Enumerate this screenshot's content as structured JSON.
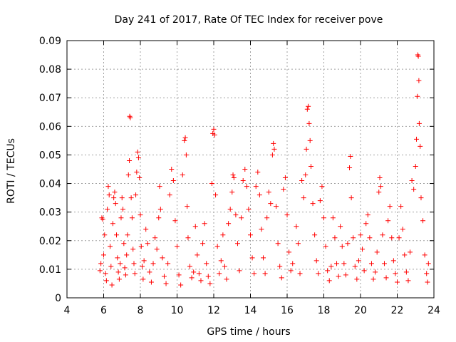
{
  "chart_data": {
    "type": "scatter",
    "title": "Day 241 of 2017, Rate Of TEC Index for receiver pove",
    "xlabel": "GPS time / hours",
    "ylabel": "ROTI / TECUs",
    "xlim": [
      4,
      24
    ],
    "ylim": [
      0,
      0.09
    ],
    "xticks": [
      "4",
      "6",
      "8",
      "10",
      "12",
      "14",
      "16",
      "18",
      "20",
      "22",
      "24"
    ],
    "yticks": [
      "0",
      "0.01",
      "0.02",
      "0.03",
      "0.04",
      "0.05",
      "0.06",
      "0.07",
      "0.08",
      "0.09"
    ],
    "grid": true,
    "marker": "+",
    "color": "#ff0000",
    "series": [
      {
        "points": [
          [
            5.8,
            0.0095
          ],
          [
            5.85,
            0.012
          ],
          [
            5.9,
            0.028
          ],
          [
            5.95,
            0.0275
          ],
          [
            6.0,
            0.015
          ],
          [
            6.05,
            0.022
          ],
          [
            6.1,
            0.0085
          ],
          [
            6.15,
            0.006
          ],
          [
            6.2,
            0.031
          ],
          [
            6.25,
            0.039
          ],
          [
            6.3,
            0.036
          ],
          [
            6.35,
            0.018
          ],
          [
            6.4,
            0.011
          ],
          [
            6.45,
            0.0045
          ],
          [
            6.5,
            0.026
          ],
          [
            6.55,
            0.035
          ],
          [
            6.6,
            0.037
          ],
          [
            6.65,
            0.033
          ],
          [
            6.7,
            0.022
          ],
          [
            6.75,
            0.014
          ],
          [
            6.8,
            0.009
          ],
          [
            6.85,
            0.0065
          ],
          [
            6.9,
            0.012
          ],
          [
            6.95,
            0.028
          ],
          [
            7.0,
            0.035
          ],
          [
            7.05,
            0.031
          ],
          [
            7.1,
            0.019
          ],
          [
            7.15,
            0.0105
          ],
          [
            7.2,
            0.008
          ],
          [
            7.25,
            0.015
          ],
          [
            7.3,
            0.022
          ],
          [
            7.35,
            0.043
          ],
          [
            7.4,
            0.048
          ],
          [
            7.42,
            0.0635
          ],
          [
            7.45,
            0.063
          ],
          [
            7.5,
            0.035
          ],
          [
            7.55,
            0.028
          ],
          [
            7.6,
            0.017
          ],
          [
            7.65,
            0.012
          ],
          [
            7.7,
            0.0085
          ],
          [
            7.75,
            0.036
          ],
          [
            7.8,
            0.044
          ],
          [
            7.85,
            0.051
          ],
          [
            7.9,
            0.049
          ],
          [
            7.95,
            0.042
          ],
          [
            8.0,
            0.029
          ],
          [
            8.05,
            0.018
          ],
          [
            8.1,
            0.011
          ],
          [
            8.15,
            0.0065
          ],
          [
            8.2,
            0.013
          ],
          [
            8.3,
            0.024
          ],
          [
            8.4,
            0.019
          ],
          [
            8.5,
            0.009
          ],
          [
            8.6,
            0.0055
          ],
          [
            8.7,
            0.012
          ],
          [
            8.8,
            0.021
          ],
          [
            8.9,
            0.017
          ],
          [
            9.0,
            0.028
          ],
          [
            9.05,
            0.039
          ],
          [
            9.1,
            0.031
          ],
          [
            9.2,
            0.014
          ],
          [
            9.3,
            0.0075
          ],
          [
            9.4,
            0.005
          ],
          [
            9.5,
            0.012
          ],
          [
            9.6,
            0.036
          ],
          [
            9.7,
            0.045
          ],
          [
            9.8,
            0.041
          ],
          [
            9.9,
            0.027
          ],
          [
            10.0,
            0.018
          ],
          [
            10.1,
            0.008
          ],
          [
            10.2,
            0.0045
          ],
          [
            10.3,
            0.043
          ],
          [
            10.4,
            0.055
          ],
          [
            10.45,
            0.056
          ],
          [
            10.5,
            0.05
          ],
          [
            10.55,
            0.032
          ],
          [
            10.6,
            0.021
          ],
          [
            10.7,
            0.011
          ],
          [
            10.8,
            0.007
          ],
          [
            10.9,
            0.009
          ],
          [
            11.0,
            0.025
          ],
          [
            11.1,
            0.015
          ],
          [
            11.2,
            0.0085
          ],
          [
            11.3,
            0.006
          ],
          [
            11.4,
            0.019
          ],
          [
            11.5,
            0.026
          ],
          [
            11.6,
            0.012
          ],
          [
            11.7,
            0.0075
          ],
          [
            11.8,
            0.005
          ],
          [
            11.9,
            0.04
          ],
          [
            11.95,
            0.0575
          ],
          [
            12.0,
            0.059
          ],
          [
            12.05,
            0.057
          ],
          [
            12.1,
            0.036
          ],
          [
            12.2,
            0.018
          ],
          [
            12.3,
            0.0085
          ],
          [
            12.4,
            0.013
          ],
          [
            12.5,
            0.022
          ],
          [
            12.6,
            0.011
          ],
          [
            12.7,
            0.0065
          ],
          [
            12.8,
            0.026
          ],
          [
            12.9,
            0.031
          ],
          [
            13.0,
            0.037
          ],
          [
            13.05,
            0.043
          ],
          [
            13.1,
            0.042
          ],
          [
            13.2,
            0.029
          ],
          [
            13.3,
            0.019
          ],
          [
            13.4,
            0.0095
          ],
          [
            13.5,
            0.028
          ],
          [
            13.6,
            0.041
          ],
          [
            13.7,
            0.045
          ],
          [
            13.8,
            0.039
          ],
          [
            13.9,
            0.031
          ],
          [
            14.0,
            0.022
          ],
          [
            14.1,
            0.014
          ],
          [
            14.2,
            0.0085
          ],
          [
            14.3,
            0.039
          ],
          [
            14.4,
            0.044
          ],
          [
            14.5,
            0.036
          ],
          [
            14.6,
            0.024
          ],
          [
            14.7,
            0.014
          ],
          [
            14.8,
            0.0085
          ],
          [
            14.9,
            0.028
          ],
          [
            15.0,
            0.037
          ],
          [
            15.1,
            0.033
          ],
          [
            15.2,
            0.05
          ],
          [
            15.25,
            0.054
          ],
          [
            15.3,
            0.052
          ],
          [
            15.4,
            0.032
          ],
          [
            15.5,
            0.019
          ],
          [
            15.6,
            0.011
          ],
          [
            15.7,
            0.007
          ],
          [
            15.8,
            0.038
          ],
          [
            15.9,
            0.042
          ],
          [
            16.0,
            0.029
          ],
          [
            16.1,
            0.016
          ],
          [
            16.2,
            0.0095
          ],
          [
            16.3,
            0.012
          ],
          [
            16.5,
            0.025
          ],
          [
            16.6,
            0.019
          ],
          [
            16.7,
            0.0085
          ],
          [
            16.8,
            0.041
          ],
          [
            16.9,
            0.035
          ],
          [
            17.0,
            0.043
          ],
          [
            17.05,
            0.052
          ],
          [
            17.1,
            0.066
          ],
          [
            17.15,
            0.067
          ],
          [
            17.2,
            0.061
          ],
          [
            17.25,
            0.055
          ],
          [
            17.3,
            0.046
          ],
          [
            17.4,
            0.033
          ],
          [
            17.5,
            0.022
          ],
          [
            17.6,
            0.013
          ],
          [
            17.7,
            0.0085
          ],
          [
            17.8,
            0.034
          ],
          [
            17.9,
            0.039
          ],
          [
            18.0,
            0.028
          ],
          [
            18.1,
            0.018
          ],
          [
            18.2,
            0.0095
          ],
          [
            18.3,
            0.006
          ],
          [
            18.4,
            0.011
          ],
          [
            18.5,
            0.028
          ],
          [
            18.6,
            0.021
          ],
          [
            18.7,
            0.012
          ],
          [
            18.8,
            0.0075
          ],
          [
            18.9,
            0.025
          ],
          [
            19.0,
            0.018
          ],
          [
            19.1,
            0.012
          ],
          [
            19.2,
            0.008
          ],
          [
            19.3,
            0.019
          ],
          [
            19.4,
            0.0455
          ],
          [
            19.45,
            0.0495
          ],
          [
            19.5,
            0.035
          ],
          [
            19.6,
            0.021
          ],
          [
            19.7,
            0.011
          ],
          [
            19.8,
            0.0065
          ],
          [
            19.9,
            0.013
          ],
          [
            20.0,
            0.022
          ],
          [
            20.1,
            0.017
          ],
          [
            20.2,
            0.0095
          ],
          [
            20.3,
            0.026
          ],
          [
            20.4,
            0.029
          ],
          [
            20.5,
            0.021
          ],
          [
            20.6,
            0.012
          ],
          [
            20.7,
            0.0065
          ],
          [
            20.8,
            0.009
          ],
          [
            20.9,
            0.016
          ],
          [
            21.0,
            0.037
          ],
          [
            21.05,
            0.042
          ],
          [
            21.1,
            0.039
          ],
          [
            21.2,
            0.022
          ],
          [
            21.3,
            0.012
          ],
          [
            21.4,
            0.007
          ],
          [
            21.5,
            0.027
          ],
          [
            21.6,
            0.032
          ],
          [
            21.7,
            0.021
          ],
          [
            21.8,
            0.013
          ],
          [
            21.9,
            0.0085
          ],
          [
            22.0,
            0.0055
          ],
          [
            22.1,
            0.021
          ],
          [
            22.2,
            0.032
          ],
          [
            22.3,
            0.024
          ],
          [
            22.4,
            0.015
          ],
          [
            22.5,
            0.009
          ],
          [
            22.6,
            0.006
          ],
          [
            22.7,
            0.016
          ],
          [
            22.8,
            0.041
          ],
          [
            22.9,
            0.038
          ],
          [
            23.0,
            0.046
          ],
          [
            23.05,
            0.0555
          ],
          [
            23.1,
            0.0705
          ],
          [
            23.12,
            0.085
          ],
          [
            23.15,
            0.0845
          ],
          [
            23.18,
            0.076
          ],
          [
            23.2,
            0.061
          ],
          [
            23.25,
            0.053
          ],
          [
            23.3,
            0.035
          ],
          [
            23.4,
            0.027
          ],
          [
            23.5,
            0.015
          ],
          [
            23.6,
            0.0085
          ],
          [
            23.65,
            0.0055
          ],
          [
            23.7,
            0.012
          ]
        ]
      }
    ]
  }
}
